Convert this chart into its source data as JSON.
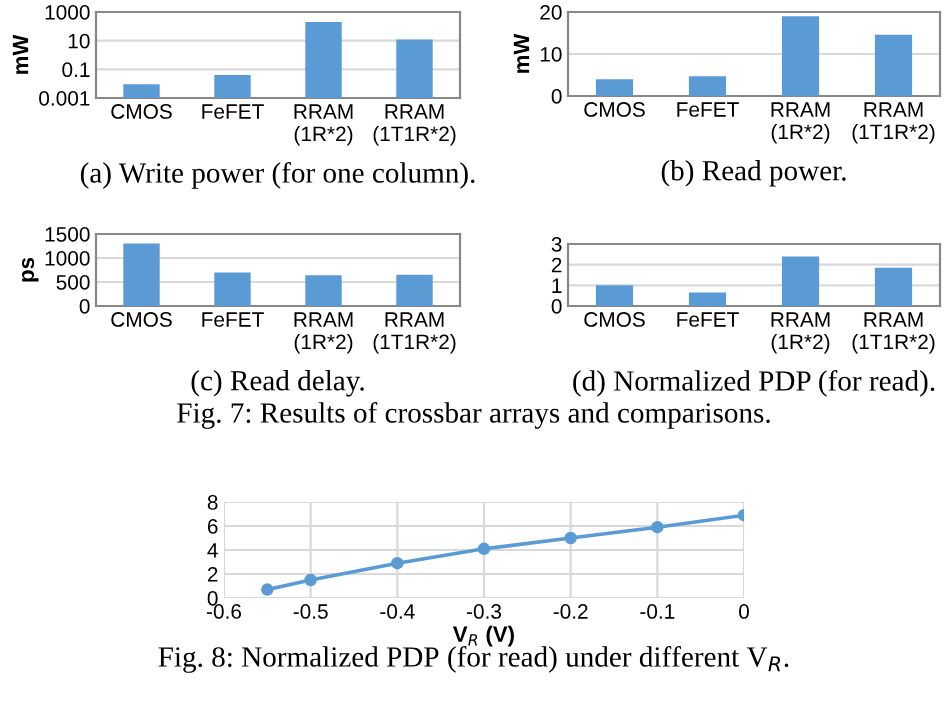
{
  "chart_data": [
    {
      "type": "bar",
      "categories": [
        "CMOS",
        "FeFET",
        "RRAM\n(1R*2)",
        "RRAM\n(1T1R*2)"
      ],
      "values": [
        0.008,
        0.04,
        200,
        12
      ],
      "color": "#5b9bd5",
      "ylabel": "mW",
      "log": true,
      "ylim": [
        0.001,
        1000
      ],
      "yticks": [
        0.001,
        0.1,
        10,
        1000
      ],
      "grid": "y",
      "annotations": [
        "(a) Write power (for one column)."
      ]
    },
    {
      "type": "bar",
      "categories": [
        "CMOS",
        "FeFET",
        "RRAM\n(1R*2)",
        "RRAM\n(1T1R*2)"
      ],
      "values": [
        4,
        4.7,
        19,
        14.6
      ],
      "color": "#5b9bd5",
      "ylabel": "mW",
      "ylim": [
        0,
        20
      ],
      "yticks": [
        0,
        10,
        20
      ],
      "grid": "y",
      "annotations": [
        "(b) Read power."
      ]
    },
    {
      "type": "bar",
      "categories": [
        "CMOS",
        "FeFET",
        "RRAM\n(1R*2)",
        "RRAM\n(1T1R*2)"
      ],
      "values": [
        1300,
        700,
        640,
        650
      ],
      "color": "#5b9bd5",
      "ylabel": "ps",
      "ylim": [
        0,
        1500
      ],
      "yticks": [
        0,
        500,
        1000,
        1500
      ],
      "grid": "y",
      "annotations": [
        "(c) Read delay.",
        "Fig. 7: Results of crossbar arrays and comparisons."
      ]
    },
    {
      "type": "bar",
      "categories": [
        "CMOS",
        "FeFET",
        "RRAM\n(1R*2)",
        "RRAM\n(1T1R*2)"
      ],
      "values": [
        1.0,
        0.65,
        2.4,
        1.85
      ],
      "color": "#5b9bd5",
      "ylim": [
        0,
        3
      ],
      "yticks": [
        0,
        1,
        2,
        3
      ],
      "grid": "y",
      "annotations": [
        "(d) Normalized PDP (for read)."
      ]
    },
    {
      "type": "line",
      "x": [
        -0.55,
        -0.5,
        -0.4,
        -0.3,
        -0.2,
        -0.1,
        0
      ],
      "values": [
        0.7,
        1.5,
        2.9,
        4.1,
        5.0,
        5.9,
        6.9
      ],
      "color": "#5b9bd5",
      "marker": "circle",
      "xlabel": "V$_{R}$ (V)",
      "xlim": [
        -0.6,
        0
      ],
      "xticks": [
        -0.6,
        -0.5,
        -0.4,
        -0.3,
        -0.2,
        -0.1,
        0
      ],
      "ylim": [
        0,
        8
      ],
      "yticks": [
        0,
        2,
        4,
        6,
        8
      ],
      "grid": true,
      "annotations": [
        "Fig. 8: Normalized PDP (for read) under different V$_{R}$."
      ]
    }
  ]
}
